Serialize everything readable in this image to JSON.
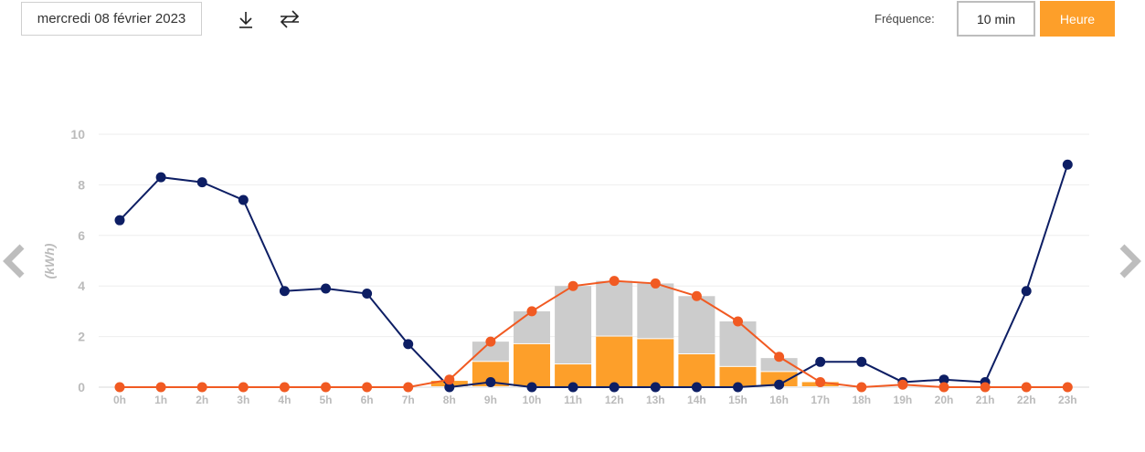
{
  "toolbar": {
    "date": "mercredi 08 février 2023",
    "download_icon": "download-icon",
    "compare_icon": "compare-arrows-icon",
    "frequency_label": "Fréquence:",
    "frequency_options": [
      "10 min",
      "Heure"
    ],
    "frequency_selected": "Heure",
    "accent_color": "#fd9f2a"
  },
  "navigation": {
    "prev_icon": "chevron-left-icon",
    "next_icon": "chevron-right-icon"
  },
  "chart_data": {
    "type": "bar",
    "ylabel": "(kWh)",
    "ylim": [
      0,
      10
    ],
    "yticks": [
      0,
      2,
      4,
      6,
      8,
      10
    ],
    "grid": true,
    "legend": "none",
    "categories": [
      "0h",
      "1h",
      "2h",
      "3h",
      "4h",
      "5h",
      "6h",
      "7h",
      "8h",
      "9h",
      "10h",
      "11h",
      "12h",
      "13h",
      "14h",
      "15h",
      "16h",
      "17h",
      "18h",
      "19h",
      "20h",
      "21h",
      "22h",
      "23h"
    ],
    "bars": [
      {
        "color": "#fd9f2a",
        "values": [
          0,
          0,
          0,
          0,
          0,
          0,
          0,
          0,
          0.25,
          1.0,
          1.7,
          0.9,
          2.0,
          1.9,
          1.3,
          0.8,
          0.6,
          0.2,
          0,
          0,
          0,
          0,
          0,
          0
        ]
      },
      {
        "color": "#cccccc",
        "values": [
          0,
          0,
          0,
          0,
          0,
          0,
          0,
          0,
          0,
          0.8,
          1.3,
          3.1,
          2.2,
          2.2,
          2.3,
          1.8,
          0.55,
          0,
          0,
          0,
          0,
          0,
          0,
          0
        ]
      }
    ],
    "lines": [
      {
        "color": "#0d1e64",
        "values": [
          6.6,
          8.3,
          8.1,
          7.4,
          3.8,
          3.9,
          3.7,
          1.7,
          0,
          0.2,
          0,
          0,
          0,
          0,
          0,
          0,
          0.1,
          1.0,
          1.0,
          0.2,
          0.3,
          0.2,
          3.8,
          8.8
        ]
      },
      {
        "color": "#f15a22",
        "values": [
          0,
          0,
          0,
          0,
          0,
          0,
          0,
          0,
          0.3,
          1.8,
          3.0,
          4.0,
          4.2,
          4.1,
          3.6,
          2.6,
          1.2,
          0.2,
          0,
          0.1,
          0,
          0,
          0,
          0
        ]
      }
    ]
  }
}
